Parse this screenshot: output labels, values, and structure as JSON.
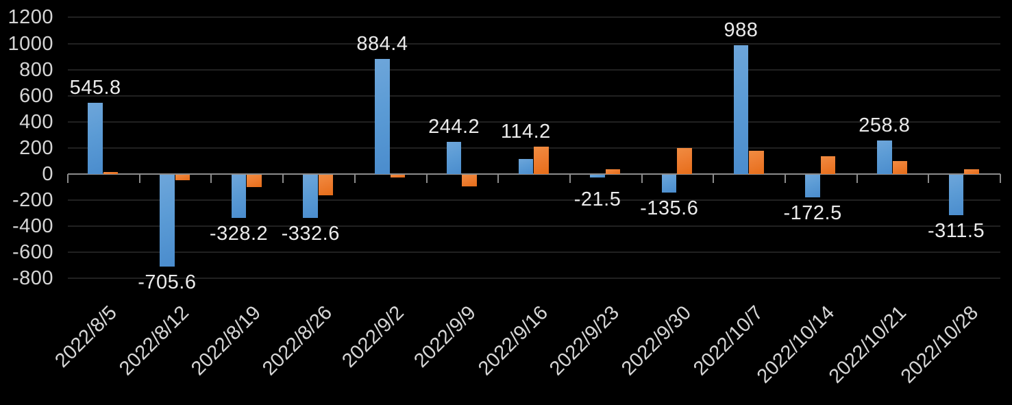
{
  "chart_data": {
    "type": "bar",
    "title": "",
    "legend_position": "none",
    "grid": true,
    "background_color": "#000000",
    "gridline_color": "#212121",
    "axis_line_color": "#8c8c8c",
    "axis_label_color": "#d6d6d6",
    "data_label_color": "#ebebeb",
    "categories": [
      "2022/8/5",
      "2022/8/12",
      "2022/8/19",
      "2022/8/26",
      "2022/9/2",
      "2022/9/9",
      "2022/9/16",
      "2022/9/23",
      "2022/9/30",
      "2022/10/7",
      "2022/10/14",
      "2022/10/21",
      "2022/10/28"
    ],
    "series": [
      {
        "name": "series-blue",
        "color": "#5b9bd5",
        "values": [
          545.8,
          -705.6,
          -328.2,
          -332.6,
          884.4,
          244.2,
          114.2,
          -21.5,
          -135.6,
          988,
          -172.5,
          258.8,
          -311.5
        ],
        "data_labels": [
          "545.8",
          "-705.6",
          "-328.2",
          "-332.6",
          "884.4",
          "244.2",
          "114.2",
          "-21.5",
          "-135.6",
          "988",
          "-172.5",
          "258.8",
          "-311.5"
        ]
      },
      {
        "name": "series-orange",
        "color": "#ed7d31",
        "values": [
          15,
          -40,
          -95,
          -155,
          -20,
          -90,
          210,
          38,
          200,
          180,
          135,
          100,
          38
        ],
        "data_labels": []
      }
    ],
    "y_axis": {
      "min": -800,
      "max": 1200,
      "tick_step": 200,
      "tick_labels": [
        "1200",
        "1000",
        "800",
        "600",
        "400",
        "200",
        "0",
        "-200",
        "-400",
        "-600",
        "-800"
      ],
      "tick_values": [
        1200,
        1000,
        800,
        600,
        400,
        200,
        0,
        -200,
        -400,
        -600,
        -800
      ]
    },
    "x_axis": {
      "label_rotation_deg": -45
    }
  }
}
